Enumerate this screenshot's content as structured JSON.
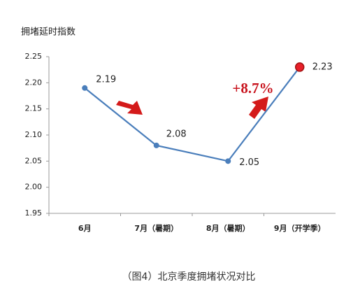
{
  "chart_data": {
    "type": "line",
    "y_axis_title": "拥堵延时指数",
    "caption": "（图4）北京季度拥堵状况对比",
    "annotation": "+8.7%",
    "categories": [
      "6月",
      "7月（暑期）",
      "8月（暑期）",
      "9月（开学季）"
    ],
    "series": [
      {
        "name": "拥堵延时指数",
        "color": "#4a7ebb",
        "values": [
          2.19,
          2.08,
          2.05,
          2.23
        ],
        "marker_colors": [
          "#4a7ebb",
          "#4a7ebb",
          "#4a7ebb",
          "#e8202a"
        ]
      }
    ],
    "ylim": [
      1.95,
      2.25
    ],
    "yticks": [
      1.95,
      {
        "value": 2.0,
        "label": "2.00"
      },
      2.05,
      {
        "value": 2.1,
        "label": "2.10"
      },
      2.15,
      {
        "value": 2.2,
        "label": "2.20"
      },
      2.25
    ],
    "grid": false
  }
}
